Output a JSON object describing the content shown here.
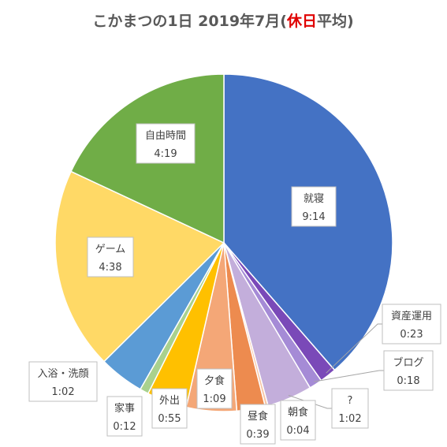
{
  "chart_data": {
    "type": "pie",
    "title": {
      "prefix": "こかまつの1日 2019年7月(",
      "highlight": "休日",
      "suffix": "平均)",
      "highlight_color": "#e00000"
    },
    "slices": [
      {
        "name": "就寝",
        "value": "9:14",
        "minutes": 554,
        "color": "#4472c4"
      },
      {
        "name": "資産運用",
        "value": "0:23",
        "minutes": 23,
        "color": "#7a49b8"
      },
      {
        "name": "ブログ",
        "value": "0:18",
        "minutes": 18,
        "color": "#a58bd6"
      },
      {
        "name": "?",
        "value": "1:02",
        "minutes": 62,
        "color": "#c3aedb"
      },
      {
        "name": "朝食",
        "value": "0:04",
        "minutes": 4,
        "color": "#f7c6a6"
      },
      {
        "name": "昼食",
        "value": "0:39",
        "minutes": 39,
        "color": "#ed8b4f"
      },
      {
        "name": "夕食",
        "value": "1:09",
        "minutes": 69,
        "color": "#f4a777"
      },
      {
        "name": "外出",
        "value": "0:55",
        "minutes": 55,
        "color": "#ffc000"
      },
      {
        "name": "家事",
        "value": "0:12",
        "minutes": 12,
        "color": "#a9d18e"
      },
      {
        "name": "入浴・洗顔",
        "value": "1:02",
        "minutes": 62,
        "color": "#5b9bd5"
      },
      {
        "name": "ゲーム",
        "value": "4:38",
        "minutes": 278,
        "color": "#ffd966"
      },
      {
        "name": "自由時間",
        "value": "4:19",
        "minutes": 259,
        "color": "#70ad47"
      }
    ]
  }
}
